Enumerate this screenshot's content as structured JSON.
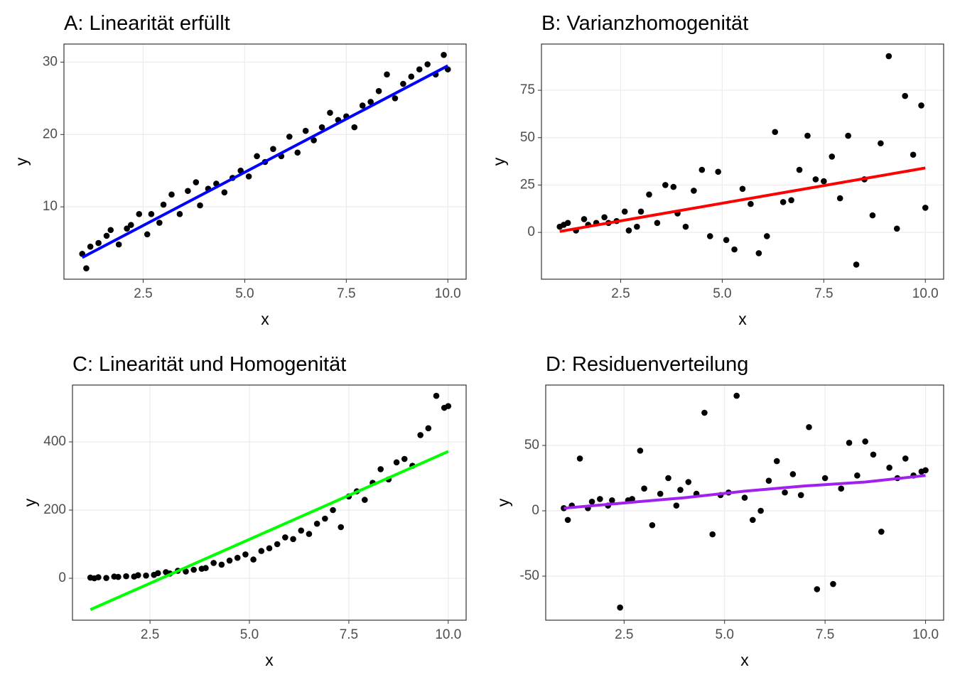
{
  "chart_data": [
    {
      "type": "scatter",
      "title": "A: Linearität erfüllt",
      "x_label": "x",
      "y_label": "y",
      "xlim": [
        0.55,
        10.45
      ],
      "ylim": [
        0.0,
        32.5
      ],
      "xticks": [
        2.5,
        {
          "value": 5,
          "label": "5.0"
        },
        7.5,
        {
          "value": 10,
          "label": "10.0"
        }
      ],
      "yticks": [
        10,
        20,
        30
      ],
      "grid": true,
      "point_color": "#000000",
      "x": [
        1.0,
        1.1,
        1.2,
        1.4,
        1.6,
        1.7,
        1.9,
        2.1,
        2.2,
        2.4,
        2.6,
        2.7,
        2.9,
        3.0,
        3.2,
        3.4,
        3.6,
        3.8,
        3.9,
        4.1,
        4.3,
        4.5,
        4.7,
        4.9,
        5.1,
        5.3,
        5.5,
        5.7,
        5.9,
        6.1,
        6.3,
        6.5,
        6.7,
        6.9,
        7.1,
        7.3,
        7.5,
        7.7,
        7.9,
        8.1,
        8.3,
        8.5,
        8.7,
        8.9,
        9.1,
        9.3,
        9.5,
        9.7,
        9.9,
        10.0
      ],
      "y": [
        3.5,
        1.5,
        4.5,
        5.0,
        6.0,
        6.8,
        4.8,
        7.0,
        7.5,
        9.0,
        6.2,
        9.0,
        7.8,
        10.3,
        11.7,
        9.0,
        12.2,
        13.4,
        10.2,
        12.5,
        13.2,
        12.0,
        14.0,
        15.0,
        14.2,
        17.0,
        16.2,
        18.0,
        17.0,
        19.7,
        17.5,
        20.5,
        19.2,
        21.0,
        23.0,
        22.0,
        22.5,
        21.0,
        24.0,
        24.5,
        26.0,
        28.3,
        25.0,
        27.0,
        28.0,
        29.0,
        29.7,
        28.3,
        31.0,
        29.0
      ],
      "fit": {
        "color": "#0000ff",
        "x": [
          1.0,
          10.0
        ],
        "y": [
          3.0,
          29.5
        ]
      }
    },
    {
      "type": "scatter",
      "title": "B: Varianzhomogenität",
      "x_label": "x",
      "y_label": "y",
      "xlim": [
        0.55,
        10.45
      ],
      "ylim": [
        -24.7,
        99.4
      ],
      "xticks": [
        2.5,
        {
          "value": 5,
          "label": "5.0"
        },
        7.5,
        {
          "value": 10,
          "label": "10.0"
        }
      ],
      "yticks": [
        0,
        25,
        50,
        75
      ],
      "grid": true,
      "point_color": "#000000",
      "x": [
        1.0,
        1.1,
        1.2,
        1.4,
        1.6,
        1.7,
        1.9,
        2.1,
        2.2,
        2.4,
        2.6,
        2.7,
        2.9,
        3.0,
        3.2,
        3.4,
        3.6,
        3.8,
        3.9,
        4.1,
        4.3,
        4.5,
        4.7,
        4.9,
        5.1,
        5.3,
        5.5,
        5.7,
        5.9,
        6.1,
        6.3,
        6.5,
        6.7,
        6.9,
        7.1,
        7.3,
        7.5,
        7.7,
        7.9,
        8.1,
        8.3,
        8.5,
        8.7,
        8.9,
        9.1,
        9.3,
        9.5,
        9.7,
        9.9,
        10.0
      ],
      "y": [
        3,
        4,
        5,
        1,
        7,
        4,
        5,
        8,
        5,
        6,
        11,
        1,
        3,
        11,
        20,
        5,
        25,
        24,
        10,
        3,
        22,
        33,
        -2,
        32,
        -4,
        -9,
        23,
        15,
        -11,
        -2,
        53,
        16,
        17,
        33,
        51,
        28,
        27,
        40,
        18,
        51,
        -17,
        28,
        9,
        47,
        93,
        2,
        72,
        41,
        67,
        13
      ],
      "fit": {
        "color": "#ff0000",
        "x": [
          1.0,
          10.0
        ],
        "y": [
          0.5,
          34.0
        ]
      }
    },
    {
      "type": "scatter",
      "title": "C: Linearität und Homogenität",
      "x_label": "x",
      "y_label": "y",
      "xlim": [
        0.55,
        10.45
      ],
      "ylim": [
        -122.9,
        566.7
      ],
      "xticks": [
        2.5,
        {
          "value": 5,
          "label": "5.0"
        },
        7.5,
        {
          "value": 10,
          "label": "10.0"
        }
      ],
      "yticks": [
        0,
        200,
        400
      ],
      "grid": true,
      "point_color": "#000000",
      "x": [
        1.0,
        1.1,
        1.2,
        1.4,
        1.6,
        1.7,
        1.9,
        2.1,
        2.2,
        2.4,
        2.6,
        2.7,
        2.9,
        3.0,
        3.2,
        3.4,
        3.6,
        3.8,
        3.9,
        4.1,
        4.3,
        4.5,
        4.7,
        4.9,
        5.1,
        5.3,
        5.5,
        5.7,
        5.9,
        6.1,
        6.3,
        6.5,
        6.7,
        6.9,
        7.1,
        7.3,
        7.5,
        7.7,
        7.9,
        8.1,
        8.3,
        8.5,
        8.7,
        8.9,
        9.1,
        9.3,
        9.5,
        9.7,
        9.9,
        10.0
      ],
      "y": [
        2,
        0,
        3,
        1,
        5,
        4,
        6,
        5,
        9,
        8,
        10,
        15,
        18,
        14,
        22,
        20,
        25,
        28,
        30,
        45,
        40,
        52,
        60,
        70,
        55,
        80,
        88,
        100,
        120,
        115,
        140,
        130,
        160,
        175,
        200,
        150,
        240,
        255,
        230,
        280,
        320,
        290,
        340,
        350,
        330,
        420,
        440,
        535,
        500,
        505
      ],
      "fit": {
        "color": "#00ff00",
        "x": [
          1.0,
          10.0
        ],
        "y": [
          -92,
          372
        ]
      }
    },
    {
      "type": "scatter",
      "title": "D: Residuenverteilung",
      "x_label": "x",
      "y_label": "y",
      "xlim": [
        0.55,
        10.45
      ],
      "ylim": [
        -83.7,
        96.2
      ],
      "xticks": [
        2.5,
        {
          "value": 5,
          "label": "5.0"
        },
        7.5,
        {
          "value": 10,
          "label": "10.0"
        }
      ],
      "yticks": [
        -50,
        0,
        50
      ],
      "grid": true,
      "point_color": "#000000",
      "x": [
        1.0,
        1.1,
        1.2,
        1.4,
        1.6,
        1.7,
        1.9,
        2.1,
        2.2,
        2.4,
        2.6,
        2.7,
        2.9,
        3.0,
        3.2,
        3.4,
        3.6,
        3.8,
        3.9,
        4.1,
        4.3,
        4.5,
        4.7,
        4.9,
        5.1,
        5.3,
        5.5,
        5.7,
        5.9,
        6.1,
        6.3,
        6.5,
        6.7,
        6.9,
        7.1,
        7.3,
        7.5,
        7.7,
        7.9,
        8.1,
        8.3,
        8.5,
        8.7,
        8.9,
        9.1,
        9.3,
        9.5,
        9.7,
        9.9,
        10.0
      ],
      "y": [
        2,
        -7,
        4,
        40,
        2,
        7,
        9,
        4,
        8,
        -74,
        8,
        9,
        46,
        17,
        -11,
        13,
        25,
        4,
        16,
        22,
        13,
        75,
        -18,
        12,
        14,
        88,
        10,
        -7,
        0,
        23,
        38,
        14,
        28,
        12,
        64,
        -60,
        25,
        -56,
        17,
        52,
        27,
        53,
        43,
        -16,
        33,
        25,
        40,
        27,
        30,
        31
      ],
      "fit": {
        "color": "#a020f0",
        "x": [
          1.0,
          2.5,
          4.0,
          5.5,
          7.0,
          8.5,
          10.0
        ],
        "y": [
          2,
          6,
          10,
          15,
          19,
          22,
          27
        ]
      }
    }
  ]
}
